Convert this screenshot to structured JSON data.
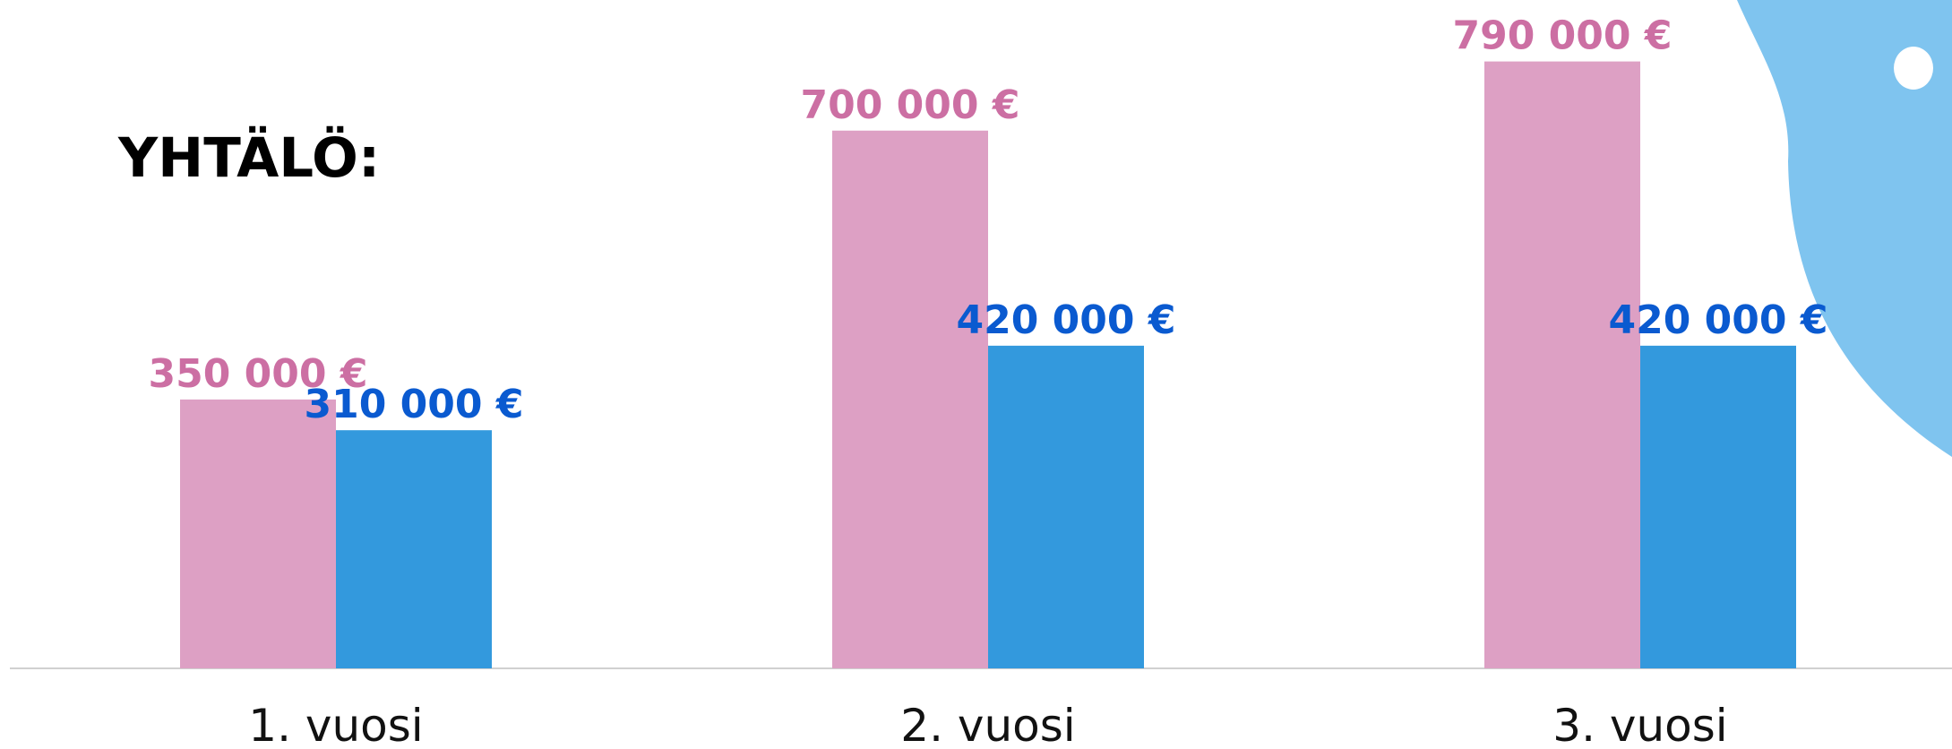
{
  "chart_data": {
    "type": "bar",
    "title": "YHTÄLÖ:",
    "categories": [
      "1. vuosi",
      "2. vuosi",
      "3. vuosi"
    ],
    "series": [
      {
        "color": "#dda0c4",
        "label_color": "#cc6fa3",
        "values": [
          350000,
          700000,
          790000
        ],
        "value_labels": [
          "350 000 €",
          "700 000 €",
          "790 000 €"
        ]
      },
      {
        "color": "#3399dd",
        "label_color": "#0a5ad0",
        "values": [
          310000,
          420000,
          420000
        ],
        "value_labels": [
          "310 000 €",
          "420 000 €",
          "420 000 €"
        ]
      }
    ],
    "ylim": [
      0,
      870000
    ]
  }
}
